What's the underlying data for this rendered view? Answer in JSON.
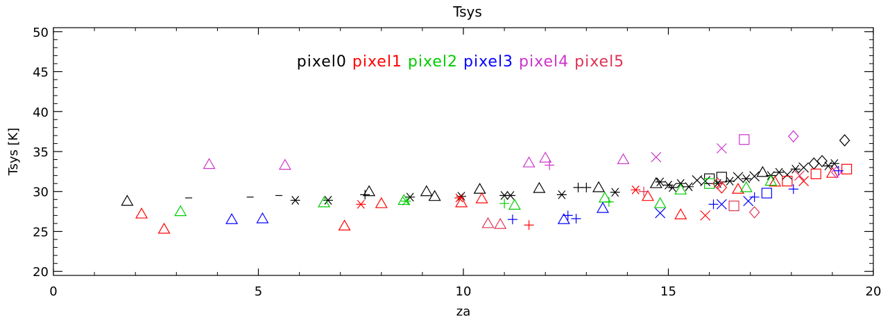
{
  "chart_data": {
    "type": "scatter",
    "title": "Tsys",
    "xlabel": "za",
    "ylabel": "Tsys [K]",
    "xlim": [
      0,
      20
    ],
    "ylim": [
      19.5,
      50.5
    ],
    "x_ticks": [
      0,
      5,
      10,
      15,
      20
    ],
    "y_ticks": [
      20,
      25,
      30,
      35,
      40,
      45,
      50
    ],
    "x_minor_step": 1,
    "y_minor_step": 1,
    "grid": false,
    "legend_position": "top-center",
    "series": [
      {
        "name": "pixel0",
        "color": "#000000",
        "points": [
          {
            "x": 1.8,
            "y": 28.8,
            "m": "triangle"
          },
          {
            "x": 3.3,
            "y": 29.2,
            "m": "dash"
          },
          {
            "x": 4.8,
            "y": 29.3,
            "m": "dash"
          },
          {
            "x": 5.5,
            "y": 29.5,
            "m": "dash"
          },
          {
            "x": 5.9,
            "y": 28.9,
            "m": "asterisk"
          },
          {
            "x": 6.7,
            "y": 28.9,
            "m": "asterisk"
          },
          {
            "x": 7.6,
            "y": 29.6,
            "m": "plus"
          },
          {
            "x": 7.7,
            "y": 30.0,
            "m": "triangle"
          },
          {
            "x": 8.7,
            "y": 29.3,
            "m": "asterisk"
          },
          {
            "x": 9.1,
            "y": 30.0,
            "m": "triangle"
          },
          {
            "x": 9.3,
            "y": 29.4,
            "m": "triangle"
          },
          {
            "x": 9.95,
            "y": 29.4,
            "m": "asterisk"
          },
          {
            "x": 10.4,
            "y": 30.3,
            "m": "triangle"
          },
          {
            "x": 11.0,
            "y": 29.5,
            "m": "asterisk"
          },
          {
            "x": 11.15,
            "y": 29.5,
            "m": "asterisk"
          },
          {
            "x": 11.85,
            "y": 30.4,
            "m": "triangle"
          },
          {
            "x": 12.4,
            "y": 29.6,
            "m": "asterisk"
          },
          {
            "x": 12.8,
            "y": 30.5,
            "m": "plus"
          },
          {
            "x": 13.0,
            "y": 30.5,
            "m": "plus"
          },
          {
            "x": 13.3,
            "y": 30.5,
            "m": "triangle"
          },
          {
            "x": 13.7,
            "y": 29.9,
            "m": "asterisk"
          },
          {
            "x": 14.7,
            "y": 31.0,
            "m": "triangle"
          },
          {
            "x": 14.8,
            "y": 31.2,
            "m": "asterisk"
          },
          {
            "x": 15.0,
            "y": 30.8,
            "m": "asterisk"
          },
          {
            "x": 15.1,
            "y": 30.5,
            "m": "asterisk"
          },
          {
            "x": 15.3,
            "y": 31.0,
            "m": "asterisk"
          },
          {
            "x": 15.5,
            "y": 30.6,
            "m": "asterisk"
          },
          {
            "x": 15.7,
            "y": 31.4,
            "m": "cross"
          },
          {
            "x": 15.9,
            "y": 31.3,
            "m": "cross"
          },
          {
            "x": 16.0,
            "y": 31.6,
            "m": "square"
          },
          {
            "x": 16.2,
            "y": 31.0,
            "m": "asterisk"
          },
          {
            "x": 16.3,
            "y": 31.8,
            "m": "square"
          },
          {
            "x": 16.5,
            "y": 31.3,
            "m": "asterisk"
          },
          {
            "x": 16.7,
            "y": 31.8,
            "m": "cross"
          },
          {
            "x": 16.9,
            "y": 31.6,
            "m": "asterisk"
          },
          {
            "x": 17.1,
            "y": 31.9,
            "m": "cross"
          },
          {
            "x": 17.3,
            "y": 32.4,
            "m": "triangle"
          },
          {
            "x": 17.5,
            "y": 32.0,
            "m": "asterisk"
          },
          {
            "x": 17.7,
            "y": 32.4,
            "m": "asterisk"
          },
          {
            "x": 17.9,
            "y": 32.1,
            "m": "cross"
          },
          {
            "x": 18.1,
            "y": 32.8,
            "m": "asterisk"
          },
          {
            "x": 18.3,
            "y": 33.0,
            "m": "cross"
          },
          {
            "x": 18.55,
            "y": 33.5,
            "m": "diamond"
          },
          {
            "x": 18.75,
            "y": 33.8,
            "m": "diamond"
          },
          {
            "x": 18.9,
            "y": 33.2,
            "m": "asterisk"
          },
          {
            "x": 19.05,
            "y": 33.5,
            "m": "asterisk"
          },
          {
            "x": 19.3,
            "y": 36.4,
            "m": "diamond"
          }
        ]
      },
      {
        "name": "pixel1",
        "color": "#ff0000",
        "points": [
          {
            "x": 2.15,
            "y": 27.2,
            "m": "triangle"
          },
          {
            "x": 2.7,
            "y": 25.3,
            "m": "triangle"
          },
          {
            "x": 7.1,
            "y": 25.7,
            "m": "triangle"
          },
          {
            "x": 7.5,
            "y": 28.4,
            "m": "asterisk"
          },
          {
            "x": 8.0,
            "y": 28.5,
            "m": "triangle"
          },
          {
            "x": 9.9,
            "y": 29.2,
            "m": "asterisk"
          },
          {
            "x": 9.95,
            "y": 28.6,
            "m": "triangle"
          },
          {
            "x": 10.45,
            "y": 29.1,
            "m": "triangle"
          },
          {
            "x": 11.6,
            "y": 25.8,
            "m": "plus"
          },
          {
            "x": 14.2,
            "y": 30.2,
            "m": "asterisk"
          },
          {
            "x": 14.5,
            "y": 29.4,
            "m": "triangle"
          },
          {
            "x": 15.3,
            "y": 27.1,
            "m": "triangle"
          },
          {
            "x": 15.9,
            "y": 27.0,
            "m": "cross"
          },
          {
            "x": 16.3,
            "y": 30.5,
            "m": "diamond"
          },
          {
            "x": 16.7,
            "y": 30.3,
            "m": "triangle"
          },
          {
            "x": 17.6,
            "y": 31.2,
            "m": "triangle"
          },
          {
            "x": 17.9,
            "y": 31.3,
            "m": "square"
          },
          {
            "x": 18.3,
            "y": 31.3,
            "m": "cross"
          },
          {
            "x": 18.6,
            "y": 32.2,
            "m": "square"
          },
          {
            "x": 19.0,
            "y": 32.3,
            "m": "triangle"
          },
          {
            "x": 19.35,
            "y": 32.8,
            "m": "square"
          }
        ]
      },
      {
        "name": "pixel2",
        "color": "#00cc00",
        "points": [
          {
            "x": 3.1,
            "y": 27.5,
            "m": "triangle"
          },
          {
            "x": 6.6,
            "y": 28.6,
            "m": "triangle"
          },
          {
            "x": 8.55,
            "y": 28.9,
            "m": "triangle"
          },
          {
            "x": 8.6,
            "y": 28.8,
            "m": "asterisk"
          },
          {
            "x": 11.0,
            "y": 28.5,
            "m": "plus"
          },
          {
            "x": 11.25,
            "y": 28.3,
            "m": "triangle"
          },
          {
            "x": 13.45,
            "y": 29.2,
            "m": "triangle"
          },
          {
            "x": 13.55,
            "y": 28.7,
            "m": "plus"
          },
          {
            "x": 14.8,
            "y": 28.5,
            "m": "triangle"
          },
          {
            "x": 15.3,
            "y": 30.2,
            "m": "triangle"
          },
          {
            "x": 16.0,
            "y": 31.0,
            "m": "square"
          },
          {
            "x": 16.9,
            "y": 30.5,
            "m": "triangle"
          },
          {
            "x": 17.5,
            "y": 31.3,
            "m": "triangle"
          }
        ]
      },
      {
        "name": "pixel3",
        "color": "#0000ff",
        "points": [
          {
            "x": 4.35,
            "y": 26.5,
            "m": "triangle"
          },
          {
            "x": 5.1,
            "y": 26.6,
            "m": "triangle"
          },
          {
            "x": 11.2,
            "y": 26.5,
            "m": "plus"
          },
          {
            "x": 12.45,
            "y": 26.5,
            "m": "triangle"
          },
          {
            "x": 12.55,
            "y": 27.0,
            "m": "plus"
          },
          {
            "x": 12.75,
            "y": 26.6,
            "m": "plus"
          },
          {
            "x": 13.4,
            "y": 27.9,
            "m": "triangle"
          },
          {
            "x": 14.8,
            "y": 27.3,
            "m": "cross"
          },
          {
            "x": 16.1,
            "y": 28.4,
            "m": "plus"
          },
          {
            "x": 16.3,
            "y": 28.4,
            "m": "cross"
          },
          {
            "x": 16.95,
            "y": 28.8,
            "m": "cross"
          },
          {
            "x": 17.1,
            "y": 29.3,
            "m": "plus"
          },
          {
            "x": 17.4,
            "y": 29.8,
            "m": "square"
          },
          {
            "x": 18.05,
            "y": 30.3,
            "m": "plus"
          },
          {
            "x": 19.15,
            "y": 32.6,
            "m": "plus"
          }
        ]
      },
      {
        "name": "pixel4",
        "color": "#cc33cc",
        "points": [
          {
            "x": 3.8,
            "y": 33.4,
            "m": "triangle"
          },
          {
            "x": 5.65,
            "y": 33.3,
            "m": "triangle"
          },
          {
            "x": 11.6,
            "y": 33.6,
            "m": "triangle"
          },
          {
            "x": 12.0,
            "y": 34.2,
            "m": "triangle"
          },
          {
            "x": 12.1,
            "y": 33.3,
            "m": "plus"
          },
          {
            "x": 13.9,
            "y": 34.0,
            "m": "triangle"
          },
          {
            "x": 14.7,
            "y": 34.3,
            "m": "cross"
          },
          {
            "x": 16.3,
            "y": 35.4,
            "m": "cross"
          },
          {
            "x": 16.85,
            "y": 36.5,
            "m": "square"
          },
          {
            "x": 18.05,
            "y": 36.9,
            "m": "diamond"
          },
          {
            "x": 19.1,
            "y": 32.4,
            "m": "diamond"
          }
        ]
      },
      {
        "name": "pixel5",
        "color": "#dd3355",
        "points": [
          {
            "x": 10.6,
            "y": 26.0,
            "m": "triangle"
          },
          {
            "x": 10.9,
            "y": 25.9,
            "m": "triangle"
          },
          {
            "x": 14.4,
            "y": 30.0,
            "m": "plus"
          },
          {
            "x": 16.2,
            "y": 31.0,
            "m": "diamond"
          },
          {
            "x": 16.6,
            "y": 28.2,
            "m": "square"
          },
          {
            "x": 17.1,
            "y": 27.4,
            "m": "diamond"
          },
          {
            "x": 18.2,
            "y": 32.0,
            "m": "cross"
          }
        ]
      }
    ]
  }
}
